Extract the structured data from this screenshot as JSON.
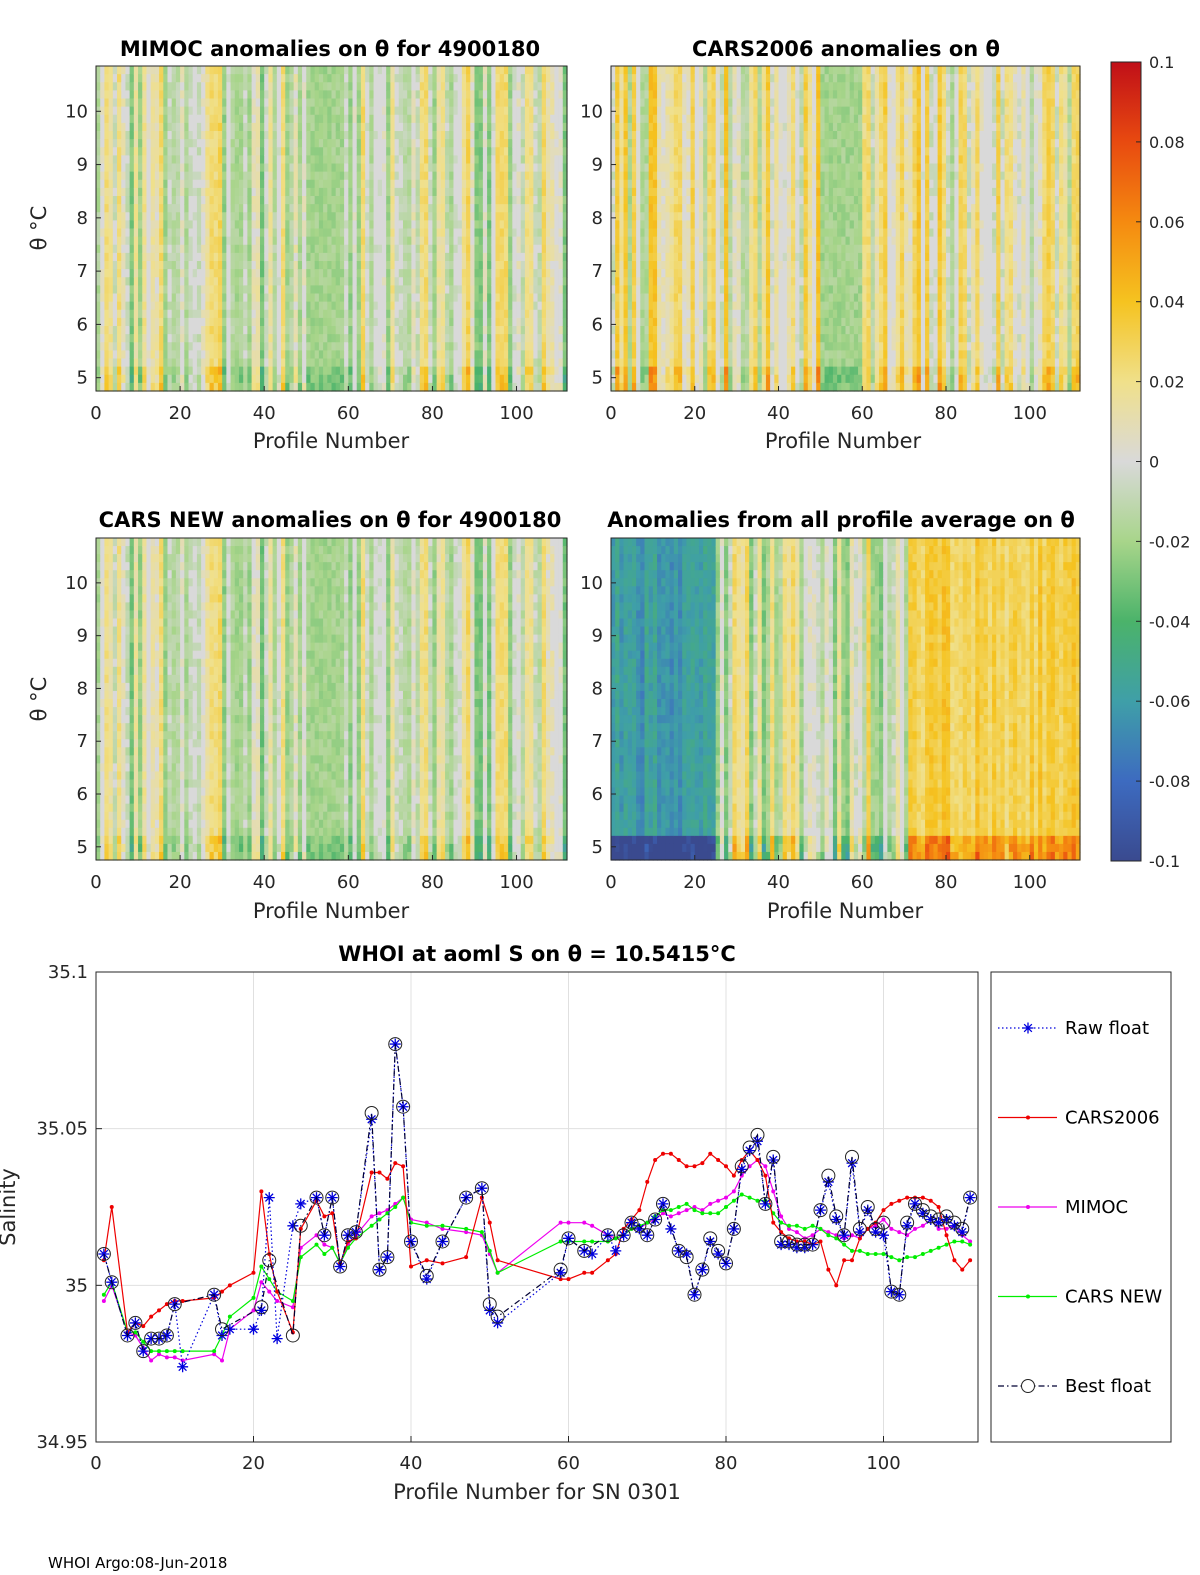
{
  "colors": {
    "raw_float": "#0000dd",
    "cars2006": "#ee0000",
    "mimoc": "#ee00ee",
    "cars_new": "#00ee00",
    "best_float": "#000033",
    "grid": "#e0e0e0"
  },
  "anomaly_panels": [
    {
      "id": "mimoc",
      "title": "MIMOC anomalies on θ  for 4900180",
      "xlabel": "Profile Number",
      "ylabel": "θ °C",
      "seed": 3,
      "bias": 0.0
    },
    {
      "id": "cars2006",
      "title": "CARS2006 anomalies on θ",
      "xlabel": "Profile Number",
      "ylabel": "",
      "seed": 7,
      "bias": 0.01
    },
    {
      "id": "cars_new",
      "title": "CARS NEW anomalies on θ for 4900180",
      "xlabel": "Profile Number",
      "ylabel": "θ °C",
      "seed": 3,
      "bias": -0.002
    },
    {
      "id": "all_avg",
      "title": "Anomalies from all profile average on θ",
      "xlabel": "Profile Number",
      "ylabel": "",
      "seed": 11,
      "bias": 0.0
    }
  ],
  "anomaly_axes": {
    "xticks": [
      0,
      20,
      40,
      60,
      80,
      100
    ],
    "yticks": [
      5,
      6,
      7,
      8,
      9,
      10
    ],
    "xlim": [
      0,
      112
    ],
    "ylim": [
      4.75,
      10.85
    ]
  },
  "colorbar": {
    "min": -0.1,
    "max": 0.1,
    "ticks": [
      "0.1",
      "0.08",
      "0.06",
      "0.04",
      "0.02",
      "0",
      "-0.02",
      "-0.04",
      "-0.06",
      "-0.08",
      "-0.1"
    ]
  },
  "chart_data": {
    "type": "line",
    "title": "WHOI at aoml S on θ = 10.5415°C",
    "xlabel": "Profile Number for SN 0301",
    "ylabel": "Salinity",
    "xlim": [
      0,
      112
    ],
    "ylim": [
      34.95,
      35.1
    ],
    "xticks": [
      0,
      20,
      40,
      60,
      80,
      100
    ],
    "yticks": [
      "34.95",
      "35",
      "35.05",
      "35.1"
    ],
    "grid": true,
    "legend_position": "right",
    "x": [
      1,
      2,
      4,
      5,
      6,
      7,
      8,
      9,
      10,
      11,
      15,
      16,
      17,
      20,
      21,
      22,
      23,
      25,
      26,
      28,
      29,
      30,
      31,
      32,
      33,
      35,
      36,
      37,
      38,
      39,
      40,
      42,
      44,
      47,
      49,
      50,
      51,
      59,
      60,
      62,
      63,
      65,
      66,
      67,
      68,
      69,
      70,
      71,
      72,
      73,
      74,
      75,
      76,
      77,
      78,
      79,
      80,
      81,
      82,
      83,
      84,
      85,
      86,
      87,
      88,
      89,
      90,
      91,
      92,
      93,
      94,
      95,
      96,
      97,
      98,
      99,
      100,
      101,
      102,
      103,
      104,
      105,
      106,
      107,
      108,
      109,
      110,
      111
    ],
    "series": [
      {
        "name": "Raw float",
        "style": "dotted-star",
        "values": [
          35.01,
          35.001,
          34.984,
          34.988,
          34.979,
          34.983,
          34.983,
          34.984,
          34.994,
          34.974,
          34.997,
          34.984,
          34.986,
          34.986,
          34.992,
          35.028,
          34.983,
          35.019,
          35.026,
          35.028,
          35.016,
          35.028,
          35.006,
          35.016,
          35.017,
          35.053,
          35.005,
          35.009,
          35.077,
          35.057,
          35.014,
          35.002,
          35.014,
          35.028,
          35.031,
          34.992,
          34.988,
          35.004,
          35.015,
          35.011,
          35.01,
          35.016,
          35.011,
          35.016,
          35.02,
          35.018,
          35.016,
          35.021,
          35.026,
          35.018,
          35.011,
          35.01,
          34.997,
          35.005,
          35.014,
          35.01,
          35.007,
          35.018,
          35.037,
          35.043,
          35.046,
          35.026,
          35.04,
          35.013,
          35.013,
          35.012,
          35.012,
          35.013,
          35.024,
          35.033,
          35.021,
          35.016,
          35.039,
          35.017,
          35.024,
          35.017,
          35.016,
          34.998,
          34.997,
          35.019,
          35.026,
          35.023,
          35.021,
          35.02,
          35.021,
          35.019,
          35.017,
          35.028
        ]
      },
      {
        "name": "CARS2006",
        "style": "solid-dot",
        "values": [
          35.008,
          35.025,
          34.985,
          34.988,
          34.987,
          34.99,
          34.992,
          34.994,
          34.995,
          34.995,
          34.996,
          34.998,
          35.0,
          35.004,
          35.03,
          35.01,
          34.998,
          34.985,
          35.018,
          35.027,
          35.022,
          35.023,
          35.007,
          35.014,
          35.015,
          35.036,
          35.036,
          35.034,
          35.039,
          35.038,
          35.006,
          35.008,
          35.007,
          35.009,
          35.028,
          35.02,
          35.008,
          35.002,
          35.002,
          35.004,
          35.004,
          35.008,
          35.01,
          35.018,
          35.021,
          35.024,
          35.033,
          35.04,
          35.042,
          35.042,
          35.04,
          35.038,
          35.038,
          35.039,
          35.042,
          35.04,
          35.038,
          35.035,
          35.04,
          35.043,
          35.04,
          35.035,
          35.02,
          35.017,
          35.015,
          35.014,
          35.014,
          35.013,
          35.014,
          35.005,
          35.0,
          35.008,
          35.008,
          35.015,
          35.018,
          35.02,
          35.024,
          35.026,
          35.027,
          35.028,
          35.028,
          35.028,
          35.027,
          35.025,
          35.016,
          35.008,
          35.005,
          35.008
        ]
      },
      {
        "name": "MIMOC",
        "style": "solid-dot",
        "values": [
          34.995,
          35.0,
          34.985,
          34.984,
          34.98,
          34.976,
          34.978,
          34.977,
          34.977,
          34.976,
          34.978,
          34.976,
          34.986,
          34.992,
          35.001,
          34.998,
          34.995,
          34.993,
          35.012,
          35.016,
          35.013,
          35.012,
          35.007,
          35.013,
          35.016,
          35.022,
          35.023,
          35.024,
          35.026,
          35.028,
          35.021,
          35.02,
          35.018,
          35.017,
          35.016,
          35.01,
          35.004,
          35.02,
          35.02,
          35.02,
          35.019,
          35.016,
          35.015,
          35.016,
          35.018,
          35.018,
          35.02,
          35.021,
          35.023,
          35.022,
          35.023,
          35.024,
          35.025,
          35.024,
          35.026,
          35.027,
          35.028,
          35.03,
          35.035,
          35.038,
          35.04,
          35.038,
          35.03,
          35.022,
          35.018,
          35.017,
          35.015,
          35.016,
          35.018,
          35.017,
          35.016,
          35.015,
          35.016,
          35.015,
          35.018,
          35.019,
          35.021,
          35.018,
          35.017,
          35.016,
          35.018,
          35.019,
          35.021,
          35.018,
          35.018,
          35.019,
          35.016,
          35.014
        ]
      },
      {
        "name": "CARS NEW",
        "style": "solid-dot",
        "values": [
          34.997,
          35.001,
          34.985,
          34.985,
          34.982,
          34.979,
          34.979,
          34.979,
          34.979,
          34.979,
          34.979,
          34.984,
          34.99,
          34.996,
          35.006,
          35.002,
          34.998,
          34.995,
          35.009,
          35.013,
          35.01,
          35.012,
          35.007,
          35.012,
          35.015,
          35.019,
          35.021,
          35.023,
          35.025,
          35.028,
          35.02,
          35.019,
          35.019,
          35.018,
          35.017,
          35.011,
          35.004,
          35.014,
          35.014,
          35.014,
          35.014,
          35.014,
          35.015,
          35.016,
          35.018,
          35.019,
          35.02,
          35.022,
          35.024,
          35.024,
          35.025,
          35.026,
          35.024,
          35.023,
          35.023,
          35.023,
          35.025,
          35.027,
          35.029,
          35.028,
          35.027,
          35.027,
          35.023,
          35.02,
          35.019,
          35.019,
          35.018,
          35.019,
          35.018,
          35.016,
          35.015,
          35.013,
          35.011,
          35.011,
          35.01,
          35.01,
          35.01,
          35.009,
          35.008,
          35.009,
          35.009,
          35.01,
          35.011,
          35.012,
          35.013,
          35.014,
          35.014,
          35.013
        ]
      },
      {
        "name": "Best float",
        "style": "dashdot-circle",
        "values": [
          35.01,
          35.001,
          34.984,
          34.988,
          34.979,
          34.983,
          34.983,
          34.984,
          34.994,
          null,
          34.997,
          34.986,
          null,
          null,
          34.993,
          35.008,
          null,
          34.984,
          35.019,
          35.028,
          35.016,
          35.028,
          35.006,
          35.016,
          35.017,
          35.055,
          35.005,
          35.009,
          35.077,
          35.057,
          35.014,
          35.003,
          35.014,
          35.028,
          35.031,
          34.994,
          34.99,
          35.005,
          35.015,
          35.011,
          null,
          35.016,
          null,
          35.016,
          35.02,
          35.019,
          35.016,
          35.021,
          35.026,
          null,
          35.011,
          35.009,
          34.997,
          35.005,
          35.015,
          35.011,
          35.007,
          35.018,
          35.038,
          35.044,
          35.048,
          35.026,
          35.041,
          35.014,
          35.014,
          35.013,
          35.013,
          35.013,
          35.024,
          35.035,
          35.022,
          35.016,
          35.041,
          35.018,
          35.025,
          35.018,
          35.02,
          34.998,
          34.997,
          35.02,
          35.026,
          35.024,
          35.022,
          35.021,
          35.022,
          35.02,
          35.018,
          35.028
        ]
      }
    ]
  },
  "footer": "WHOI Argo:08-Jun-2018"
}
